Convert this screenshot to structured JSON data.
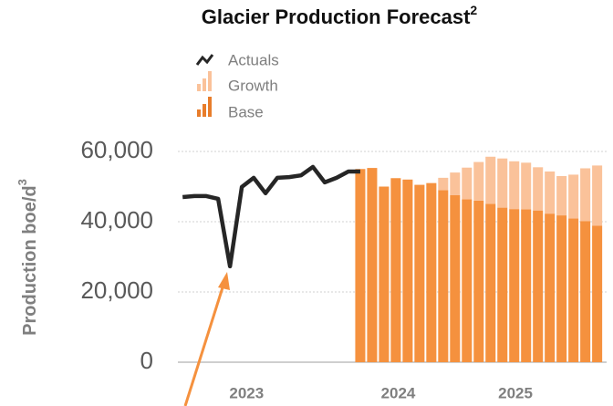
{
  "chart_data": {
    "type": "bar_line",
    "title": "Glacier Production Forecast",
    "title_note": "2",
    "y_label": "Production boe/d",
    "y_label_note": "3",
    "ylim": [
      0,
      60000
    ],
    "yticks": [
      0,
      {
        "value": 20000,
        "label": "20,000"
      },
      {
        "value": 40000,
        "label": "40,000"
      },
      {
        "value": 60000,
        "label": "60,000"
      }
    ],
    "xlim": [
      -0.4,
      35.8
    ],
    "xticks": [
      {
        "value": 5.4,
        "label": "2023"
      },
      {
        "value": 18.2,
        "label": "2024"
      },
      {
        "value": 28.1,
        "label": "2025"
      }
    ],
    "grid": true,
    "line": {
      "name": "Actuals",
      "color": "#262626",
      "x": [
        0,
        1,
        2,
        3,
        4,
        5,
        6,
        7,
        8,
        9,
        10,
        11,
        12,
        13,
        14,
        15
      ],
      "values": [
        47000,
        47300,
        47300,
        46500,
        27300,
        49900,
        52500,
        48100,
        52500,
        52700,
        53200,
        55600,
        51200,
        52500,
        54300,
        54300
      ]
    },
    "bar_x": [
      15,
      16,
      17,
      18,
      19,
      20,
      21,
      22,
      23,
      24,
      25,
      26,
      27,
      28,
      29,
      30,
      31,
      32,
      33,
      34,
      35
    ],
    "series": [
      {
        "name": "Base",
        "color": "#f5913e",
        "values": [
          55000,
          55300,
          50000,
          52400,
          52000,
          50500,
          51000,
          49000,
          47600,
          46400,
          46000,
          45100,
          44000,
          43600,
          43500,
          43200,
          42300,
          41800,
          40900,
          40200,
          38900
        ]
      },
      {
        "name": "Growth",
        "color": "#fac29a",
        "values": [
          0,
          0,
          0,
          0,
          0,
          0,
          0,
          3500,
          6400,
          9000,
          11000,
          13400,
          14000,
          13600,
          13300,
          12300,
          12000,
          11200,
          12500,
          15000,
          17100
        ]
      }
    ]
  }
}
